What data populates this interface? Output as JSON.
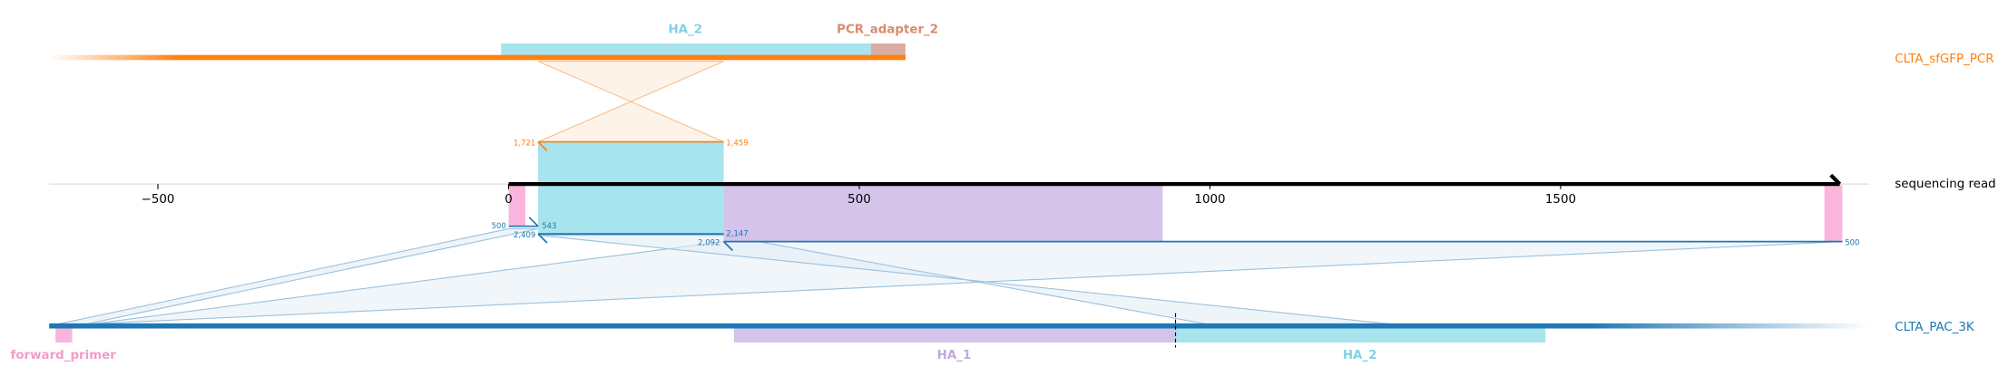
{
  "axis": {
    "xlim": [
      -655,
      1940
    ],
    "ticks": [
      {
        "value": -500,
        "label": "−500"
      },
      0,
      500,
      1000,
      1500
    ]
  },
  "tracks": [
    {
      "name": "CLTA_sfGFP_PCR",
      "features": [
        "HA_2",
        "PCR_adapter_2"
      ]
    },
    {
      "name": "sequencing read"
    },
    {
      "name": "CLTA_PAC_3K",
      "features": [
        "forward_primer",
        "HA_1",
        "HA_2"
      ]
    }
  ],
  "alignment_labels": [
    "1,721",
    "1,459",
    "500",
    "543",
    "2,409",
    "2,147",
    "2,092",
    "500"
  ]
}
